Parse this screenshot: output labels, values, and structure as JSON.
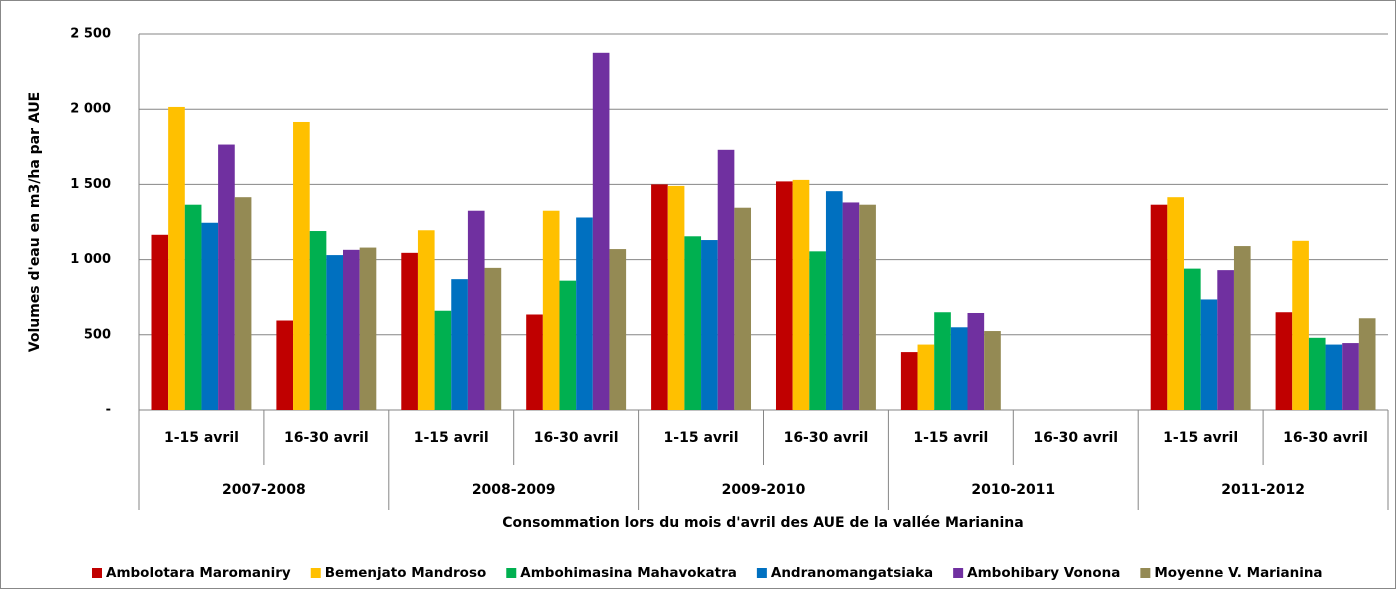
{
  "chart_data": {
    "type": "bar",
    "y_label": "Volumes d'eau en m3/ha par AUE",
    "x_label": "Consommation lors du mois d'avril des AUE de la vallée Marianina",
    "categories": [
      "1-15 avril",
      "16-30 avril",
      "1-15 avril",
      "16-30 avril",
      "1-15 avril",
      "16-30 avril",
      "1-15 avril",
      "16-30 avril",
      "1-15 avril",
      "16-30 avril"
    ],
    "groups": [
      "2007-2008",
      "2008-2009",
      "2009-2010",
      "2010-2011",
      "2011-2012"
    ],
    "series": [
      {
        "name": "Ambolotara Maromaniry",
        "color": "#c00000",
        "values": [
          1165,
          595,
          1045,
          635,
          1500,
          1520,
          385,
          null,
          1365,
          650
        ]
      },
      {
        "name": "Bemenjato Mandroso",
        "color": "#ffc000",
        "values": [
          2015,
          1915,
          1195,
          1325,
          1490,
          1530,
          435,
          null,
          1415,
          1125
        ]
      },
      {
        "name": "Ambohimasina Mahavokatra",
        "color": "#00b050",
        "values": [
          1365,
          1190,
          660,
          860,
          1155,
          1055,
          650,
          null,
          940,
          480
        ]
      },
      {
        "name": "Andranomangatsiaka",
        "color": "#0070c0",
        "values": [
          1245,
          1030,
          870,
          1280,
          1130,
          1455,
          550,
          null,
          735,
          435
        ]
      },
      {
        "name": "Ambohibary Vonona",
        "color": "#7030a0",
        "values": [
          1765,
          1065,
          1325,
          2375,
          1730,
          1380,
          645,
          null,
          930,
          445
        ]
      },
      {
        "name": "Moyenne V. Marianina",
        "color": "#948a54",
        "values": [
          1415,
          1080,
          945,
          1070,
          1345,
          1365,
          525,
          null,
          1090,
          610
        ]
      }
    ],
    "ylim": [
      0,
      2500
    ],
    "yticks": [
      {
        "value": 0,
        "label": "-"
      },
      500,
      {
        "value": 1000,
        "label": "1 000"
      },
      {
        "value": 1500,
        "label": "1 500"
      },
      {
        "value": 2000,
        "label": "2 000"
      },
      {
        "value": 2500,
        "label": "2 500"
      }
    ],
    "grid": true,
    "legend": "bottom"
  }
}
